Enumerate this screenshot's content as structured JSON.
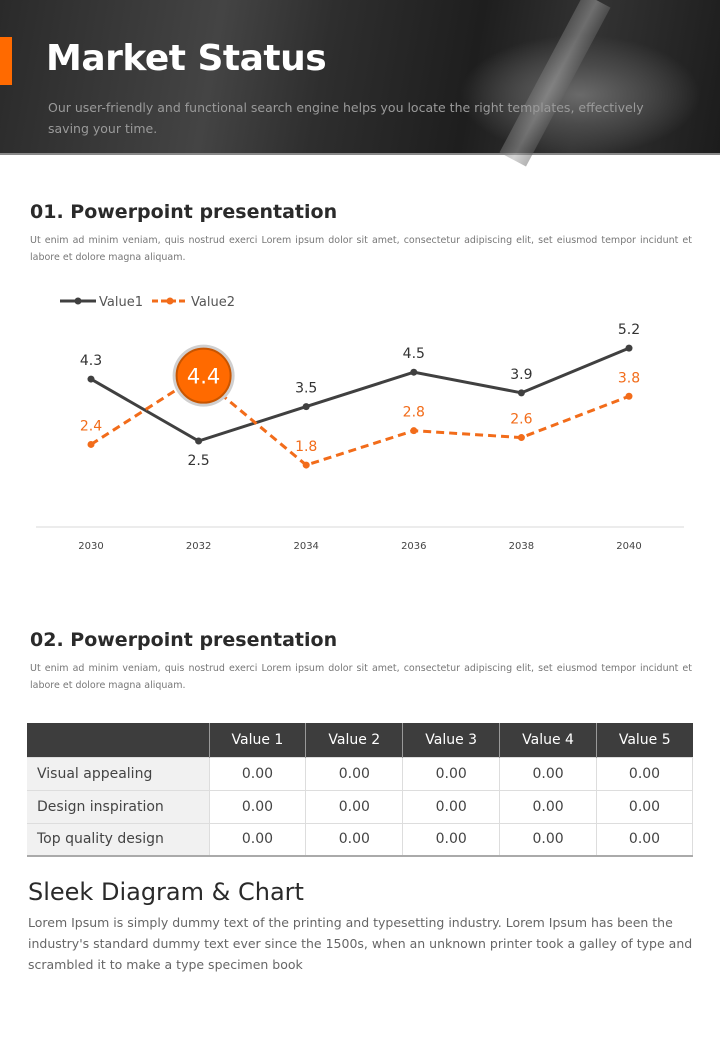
{
  "header": {
    "title": "Market Status",
    "subtitle": "Our user-friendly and functional search engine helps you locate the right templates, effectively saving your time."
  },
  "section1": {
    "title": "01. Powerpoint presentation",
    "text": "Ut enim ad minim veniam, quis nostrud exerci  Lorem ipsum dolor sit amet, consectetur adipiscing elit, set eiusmod tempor incidunt et labore et dolore magna aliquam."
  },
  "chart_data": {
    "type": "line",
    "categories": [
      "2030",
      "2032",
      "2034",
      "2036",
      "2038",
      "2040"
    ],
    "series": [
      {
        "name": "Value1",
        "values": [
          4.3,
          2.5,
          3.5,
          4.5,
          3.9,
          5.2
        ],
        "color": "#404040",
        "style": "solid"
      },
      {
        "name": "Value2",
        "values": [
          2.4,
          4.4,
          1.8,
          2.8,
          2.6,
          3.8
        ],
        "color": "#f26c1a",
        "style": "dashed"
      }
    ],
    "highlight": {
      "series": "Value2",
      "index": 1,
      "label": "4.4"
    },
    "ylim": [
      0,
      6
    ],
    "grid": false,
    "legend": "top-left"
  },
  "section2": {
    "title": "02. Powerpoint presentation",
    "text": "Ut enim ad minim veniam, quis nostrud exerci  Lorem ipsum dolor sit amet, consectetur adipiscing elit, set eiusmod tempor incidunt et labore et dolore magna aliquam."
  },
  "table": {
    "headers": [
      "",
      "Value 1",
      "Value 2",
      "Value 3",
      "Value 4",
      "Value 5"
    ],
    "rows": [
      {
        "label": "Visual appealing",
        "values": [
          "0.00",
          "0.00",
          "0.00",
          "0.00",
          "0.00"
        ]
      },
      {
        "label": "Design inspiration",
        "values": [
          "0.00",
          "0.00",
          "0.00",
          "0.00",
          "0.00"
        ]
      },
      {
        "label": "Top quality design",
        "values": [
          "0.00",
          "0.00",
          "0.00",
          "0.00",
          "0.00"
        ]
      }
    ]
  },
  "section3": {
    "title": "Sleek Diagram & Chart",
    "text": "Lorem Ipsum is simply dummy text of the printing and typesetting industry. Lorem Ipsum has been the industry's standard dummy text ever since the 1500s, when an unknown printer took a galley of type and scrambled it to make a type specimen book"
  }
}
